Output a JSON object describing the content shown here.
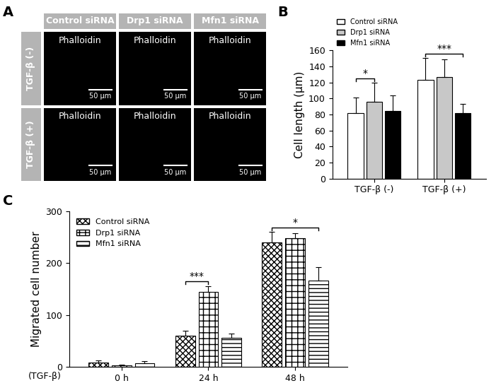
{
  "image_grid": {
    "panel_label": "A",
    "columns": [
      "Control siRNA",
      "Drp1 siRNA",
      "Mfn1 siRNA"
    ],
    "rows": [
      "TGF-β (-)",
      "TGF-β (+)"
    ],
    "stain": "Phalloidin",
    "scale_bar": "50 μm"
  },
  "chart_data": [
    {
      "panel_label": "B",
      "type": "bar",
      "y_label": "Cell length (μm)",
      "categories": [
        "TGF-β (-)",
        "TGF-β (+)"
      ],
      "series": [
        {
          "name": "Control siRNA",
          "color": "#ffffff",
          "values": [
            82,
            123
          ],
          "errors": [
            19,
            28
          ]
        },
        {
          "name": "Drp1 siRNA",
          "color": "#c8c8c8",
          "values": [
            96,
            127
          ],
          "errors": [
            24,
            22
          ]
        },
        {
          "name": "Mfn1 siRNA",
          "color": "#000000",
          "values": [
            84,
            82
          ],
          "errors": [
            20,
            11
          ]
        }
      ],
      "ylim": [
        0,
        160
      ],
      "yticks": [
        0,
        20,
        40,
        60,
        80,
        100,
        120,
        140,
        160
      ],
      "legend": "top",
      "annotations": [
        {
          "text": "*",
          "category": 0,
          "series": [
            0,
            1
          ]
        },
        {
          "text": "***",
          "category": 1,
          "series": [
            0,
            2
          ]
        }
      ]
    },
    {
      "panel_label": "C",
      "type": "bar",
      "y_label": "Migrated cell number",
      "x_label": "(TGF-β)",
      "categories": [
        "0 h",
        "24 h",
        "48 h"
      ],
      "series": [
        {
          "name": "Control siRNA",
          "color": "#ffffff",
          "values": [
            8,
            60,
            240
          ],
          "errors": [
            4,
            10,
            20
          ]
        },
        {
          "name": "Drp1 siRNA",
          "color": "#ffffff",
          "values": [
            3,
            144,
            248
          ],
          "errors": [
            1,
            12,
            10
          ]
        },
        {
          "name": "Mfn1 siRNA",
          "color": "#ffffff",
          "values": [
            7,
            56,
            166
          ],
          "errors": [
            3,
            8,
            27
          ]
        }
      ],
      "ylim": [
        0,
        300
      ],
      "yticks": [
        0,
        100,
        200,
        300
      ],
      "legend": "upper left",
      "annotations": [
        {
          "text": "***",
          "category": 1,
          "series": [
            0,
            1
          ]
        },
        {
          "text": "*",
          "category": 2,
          "series": [
            0,
            2
          ]
        }
      ]
    }
  ]
}
